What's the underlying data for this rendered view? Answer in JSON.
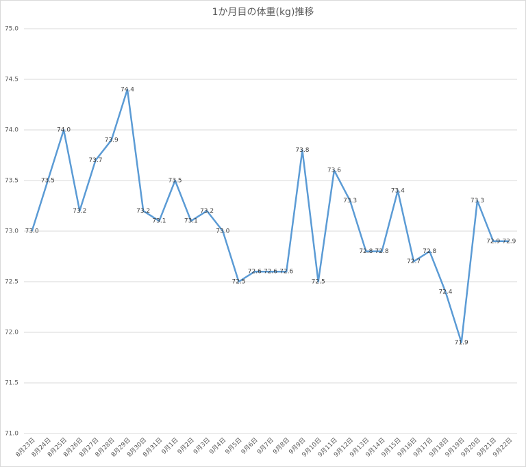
{
  "chart_data": {
    "type": "line",
    "title": "1か月目の体重(kg)推移",
    "categories": [
      "8月23日",
      "8月24日",
      "8月25日",
      "8月26日",
      "8月27日",
      "8月28日",
      "8月29日",
      "8月30日",
      "8月31日",
      "9月1日",
      "9月2日",
      "9月3日",
      "9月4日",
      "9月5日",
      "9月6日",
      "9月7日",
      "9月8日",
      "9月9日",
      "9月10日",
      "9月11日",
      "9月12日",
      "9月13日",
      "9月14日",
      "9月15日",
      "9月16日",
      "9月17日",
      "9月18日",
      "9月19日",
      "9月20日",
      "9月21日",
      "9月22日"
    ],
    "values": [
      73.0,
      73.5,
      74.0,
      73.2,
      73.7,
      73.9,
      74.4,
      73.2,
      73.1,
      73.5,
      73.1,
      73.2,
      73.0,
      72.5,
      72.6,
      72.6,
      72.6,
      73.8,
      72.5,
      73.6,
      73.3,
      72.8,
      72.8,
      73.4,
      72.7,
      72.8,
      72.4,
      71.9,
      73.3,
      72.9,
      72.9
    ],
    "value_labels": [
      "73.0",
      "73.5",
      "74.0",
      "73.2",
      "73.7",
      "73.9",
      "74.4",
      "73.2",
      "73.1",
      "73.5",
      "73.1",
      "73.2",
      "73.0",
      "72.5",
      "72.6",
      "72.6",
      "72.6",
      "73.8",
      "72.5",
      "73.6",
      "73.3",
      "72.8",
      "72.8",
      "73.4",
      "72.7",
      "72.8",
      "72.4",
      "71.9",
      "73.3",
      "72.9",
      "72.9"
    ],
    "color": "#5b9bd5",
    "ylim": [
      71,
      75
    ],
    "yticks": [
      {
        "value": 71,
        "label": "71.0"
      },
      {
        "value": 71.5,
        "label": "71.5"
      },
      {
        "value": 72,
        "label": "72.0"
      },
      {
        "value": 72.5,
        "label": "72.5"
      },
      {
        "value": 73,
        "label": "73.0"
      },
      {
        "value": 73.5,
        "label": "73.5"
      },
      {
        "value": 74,
        "label": "74.0"
      },
      {
        "value": 74.5,
        "label": "74.5"
      },
      {
        "value": 75,
        "label": "75.0"
      }
    ],
    "grid": true
  }
}
